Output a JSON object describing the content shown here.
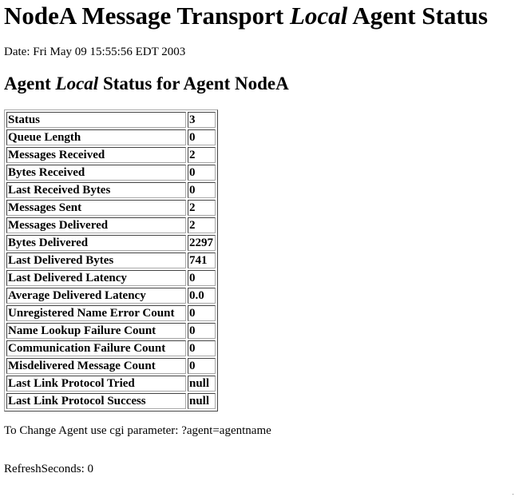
{
  "title": {
    "prefix": "NodeA Message Transport ",
    "emphasis": "Local",
    "suffix": " Agent Status"
  },
  "date_line": "Date: Fri May 09 15:55:56 EDT 2003",
  "subtitle": {
    "prefix": "Agent ",
    "emphasis": "Local",
    "suffix": " Status for Agent NodeA"
  },
  "status_rows": [
    {
      "label": "Status",
      "value": "3"
    },
    {
      "label": "Queue Length",
      "value": "0"
    },
    {
      "label": "Messages Received",
      "value": "2"
    },
    {
      "label": "Bytes Received",
      "value": "0"
    },
    {
      "label": "Last Received Bytes",
      "value": "0"
    },
    {
      "label": "Messages Sent",
      "value": "2"
    },
    {
      "label": "Messages Delivered",
      "value": "2"
    },
    {
      "label": "Bytes Delivered",
      "value": "2297"
    },
    {
      "label": "Last Delivered Bytes",
      "value": "741"
    },
    {
      "label": "Last Delivered Latency",
      "value": "0"
    },
    {
      "label": "Average Delivered Latency",
      "value": "0.0"
    },
    {
      "label": "Unregistered Name Error Count",
      "value": "0"
    },
    {
      "label": "Name Lookup Failure Count",
      "value": "0"
    },
    {
      "label": "Communication Failure Count",
      "value": "0"
    },
    {
      "label": "Misdelivered Message Count",
      "value": "0"
    },
    {
      "label": "Last Link Protocol Tried",
      "value": "null"
    },
    {
      "label": "Last Link Protocol Success",
      "value": "null"
    }
  ],
  "hint_text": "To Change Agent use cgi parameter: ?agent=agentname",
  "refresh_text": "RefreshSeconds: 0"
}
